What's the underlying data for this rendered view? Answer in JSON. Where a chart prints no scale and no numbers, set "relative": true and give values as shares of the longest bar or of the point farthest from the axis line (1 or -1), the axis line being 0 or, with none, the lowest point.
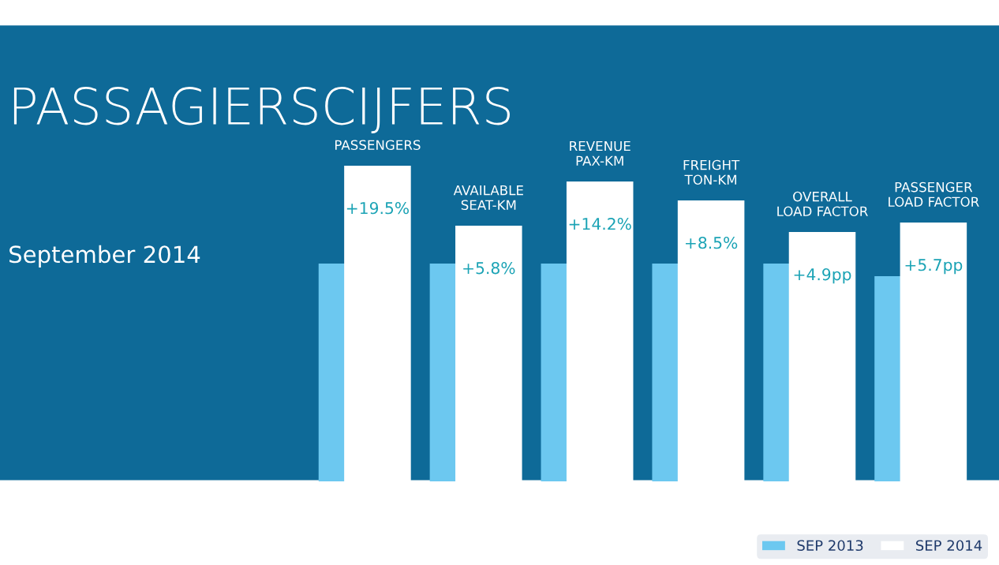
{
  "chart_data": {
    "type": "bar",
    "relative": true,
    "title": "PASSAGIERSCIJFERS",
    "subtitle": "September 2014",
    "categories": [
      "PASSENGERS",
      "AVAILABLE\nSEAT-KM",
      "REVENUE\nPAX-KM",
      "FREIGHT\nTON-KM",
      "OVERALL\nLOAD FACTOR",
      "PASSENGER\nLOAD FACTOR"
    ],
    "series": [
      {
        "name": "SEP 2013",
        "color": "#6cc8f0",
        "values": [
          0.69,
          0.69,
          0.69,
          0.69,
          0.69,
          0.65
        ]
      },
      {
        "name": "SEP 2014",
        "color": "#ffffff",
        "values": [
          1,
          0.81,
          0.95,
          0.89,
          0.79,
          0.82
        ]
      }
    ],
    "annotations": [
      {
        "text": "+19.5%",
        "x": "PASSENGERS",
        "y": 1
      },
      {
        "text": "+5.8%",
        "x": "AVAILABLE\nSEAT-KM",
        "y": 0.81
      },
      {
        "text": "+14.2%",
        "x": "REVENUE\nPAX-KM",
        "y": 0.95
      },
      {
        "text": "+8.5%",
        "x": "FREIGHT\nTON-KM",
        "y": 0.89
      },
      {
        "text": "+4.9pp",
        "x": "OVERALL\nLOAD FACTOR",
        "y": 0.79
      },
      {
        "text": "+5.7pp",
        "x": "PASSENGER\nLOAD FACTOR",
        "y": 0.82
      }
    ],
    "legend": "bottom right"
  }
}
